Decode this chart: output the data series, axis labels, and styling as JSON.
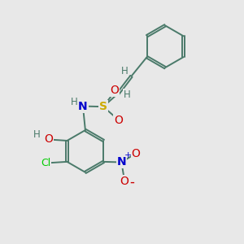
{
  "background_color": "#e8e8e8",
  "bond_color": "#4a7a6a",
  "atom_colors": {
    "S": "#ccaa00",
    "N": "#0000cc",
    "O": "#cc0000",
    "Cl": "#00cc00",
    "H": "#4a7a6a",
    "C": "#4a7a6a"
  },
  "figsize": [
    3.0,
    3.0
  ],
  "dpi": 100
}
